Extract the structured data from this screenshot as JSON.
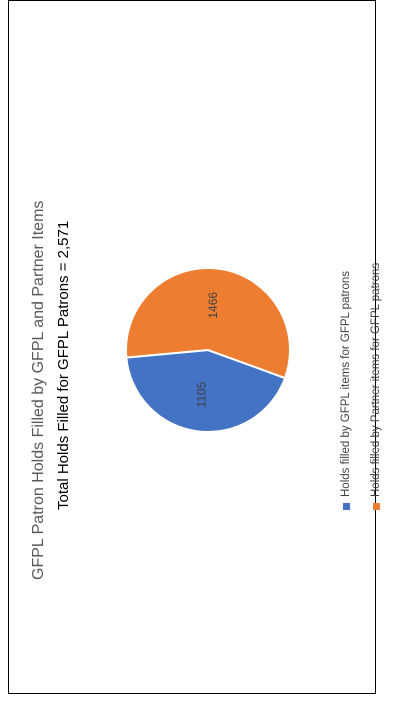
{
  "chart_data": {
    "type": "pie",
    "title": "GFPL Patron Holds Filled by GFPL and Partner Items",
    "subtitle": "Total Holds Filled for GFPL Patrons = 2,571",
    "slices": [
      {
        "label": "Holds filled by GFPL items for GFPL patrons",
        "value": 1105,
        "data_label": "1105",
        "color": "#4472C4"
      },
      {
        "label": "Holds filled by Partner items for GFPL patrons",
        "value": 1466,
        "data_label": "1466",
        "color": "#ED7D31"
      }
    ],
    "legend_position": "right"
  }
}
